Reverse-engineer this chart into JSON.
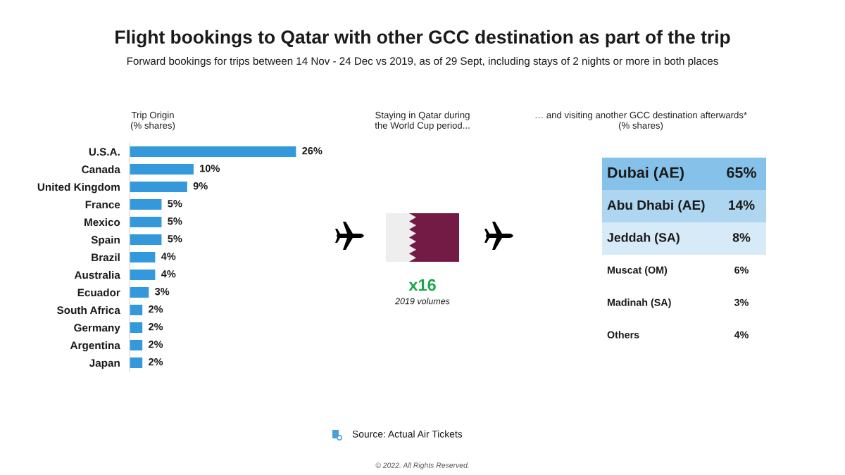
{
  "chart_data": [
    {
      "type": "other",
      "title": "Flight bookings to Qatar with other GCC destination as part of the trip",
      "subtitle": "Forward bookings for trips between 14 Nov - 24 Dec vs 2019, as of 29 Sept, including stays of 2 nights or more in both places",
      "annotations": [
        "Source: Actual Air Tickets",
        "© 2022. All Rights Reserved."
      ]
    },
    {
      "type": "bar",
      "orientation": "horizontal",
      "title": "Trip Origin\n(% shares)",
      "categories": [
        "U.S.A.",
        "Canada",
        "United Kingdom",
        "France",
        "Mexico",
        "Spain",
        "Brazil",
        "Australia",
        "Ecuador",
        "South Africa",
        "Germany",
        "Argentina",
        "Japan"
      ],
      "values": [
        26,
        10,
        9,
        5,
        5,
        5,
        4,
        4,
        3,
        2,
        2,
        2,
        2
      ],
      "value_labels": [
        "26%",
        "10%",
        "9%",
        "5%",
        "5%",
        "5%",
        "4%",
        "4%",
        "3%",
        "2%",
        "2%",
        "2%",
        "2%"
      ],
      "color": "#3399db",
      "tick_labels": "y"
    },
    {
      "type": "other",
      "title": "Staying in Qatar during\nthe World Cup period...",
      "values": [
        16
      ],
      "value_labels": [
        "x16"
      ],
      "color": "#1aa64a",
      "annotations": [
        "2019 volumes"
      ]
    },
    {
      "type": "other",
      "title": "… and visiting another GCC destination afterwards*\n(% shares)",
      "categories": [
        "Dubai (AE)",
        "Abu Dhabi (AE)",
        "Jeddah (SA)",
        "Muscat (OM)",
        "Madinah (SA)",
        "Others"
      ],
      "values": [
        65,
        14,
        8,
        6,
        3,
        4
      ],
      "value_labels": [
        "65%",
        "14%",
        "8%",
        "6%",
        "3%",
        "4%"
      ],
      "colors": [
        "#85c1e9",
        "#aed6f1",
        "#d6eaf8",
        null,
        null,
        null
      ]
    }
  ]
}
